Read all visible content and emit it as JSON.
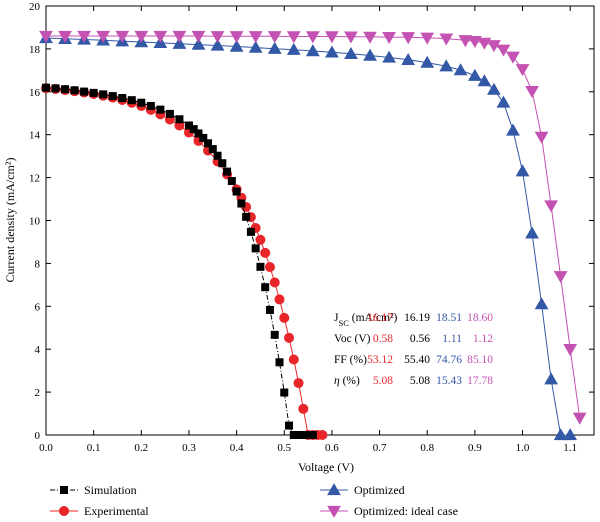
{
  "chart_data": {
    "type": "scatter",
    "xlabel": "Voltage (V)",
    "ylabel": "Current density (mA/cm²)",
    "xlim": [
      0.0,
      1.15
    ],
    "ylim": [
      0,
      20
    ],
    "xticks": [
      "0.0",
      "0.1",
      "0.2",
      "0.3",
      "0.4",
      "0.5",
      "0.6",
      "0.7",
      "0.8",
      "0.9",
      "1.0",
      "1.1"
    ],
    "yticks": [
      "0",
      "2",
      "4",
      "6",
      "8",
      "10",
      "12",
      "14",
      "16",
      "18",
      "20"
    ],
    "grid": false,
    "legend_position": "bottom",
    "series": [
      {
        "name": "Simulation",
        "color": "#000000",
        "marker": "square",
        "line": "dash-dot",
        "Jsc": 16.19,
        "Voc": 0.56,
        "x": [
          0.0,
          0.02,
          0.04,
          0.06,
          0.08,
          0.1,
          0.12,
          0.14,
          0.16,
          0.18,
          0.2,
          0.22,
          0.24,
          0.26,
          0.28,
          0.3,
          0.31,
          0.32,
          0.33,
          0.34,
          0.35,
          0.36,
          0.37,
          0.38,
          0.39,
          0.4,
          0.41,
          0.42,
          0.43,
          0.44,
          0.45,
          0.46,
          0.47,
          0.48,
          0.49,
          0.5,
          0.51,
          0.52,
          0.53,
          0.54,
          0.55,
          0.56
        ],
        "y": [
          16.19,
          16.16,
          16.12,
          16.07,
          16.01,
          15.95,
          15.88,
          15.8,
          15.71,
          15.61,
          15.49,
          15.34,
          15.17,
          14.97,
          14.72,
          14.43,
          14.26,
          14.06,
          13.85,
          13.6,
          13.33,
          13.02,
          12.67,
          12.28,
          11.84,
          11.35,
          10.79,
          10.17,
          9.47,
          8.7,
          7.84,
          6.89,
          5.83,
          4.67,
          3.39,
          1.98,
          0.44,
          0.0,
          0.0,
          0.0,
          0.0,
          0.0
        ]
      },
      {
        "name": "Experimental",
        "color": "#e8262a",
        "marker": "circle",
        "line": "solid",
        "Jsc": 16.17,
        "Voc": 0.58,
        "x": [
          0.0,
          0.02,
          0.04,
          0.06,
          0.08,
          0.1,
          0.12,
          0.14,
          0.16,
          0.18,
          0.2,
          0.22,
          0.24,
          0.26,
          0.28,
          0.3,
          0.32,
          0.34,
          0.36,
          0.38,
          0.4,
          0.41,
          0.42,
          0.43,
          0.44,
          0.45,
          0.46,
          0.47,
          0.48,
          0.49,
          0.5,
          0.51,
          0.52,
          0.53,
          0.54,
          0.55,
          0.56,
          0.57,
          0.58
        ],
        "y": [
          16.17,
          16.13,
          16.08,
          16.03,
          15.97,
          15.9,
          15.82,
          15.73,
          15.62,
          15.49,
          15.34,
          15.16,
          14.95,
          14.71,
          14.43,
          14.1,
          13.71,
          13.26,
          12.75,
          12.15,
          11.45,
          11.06,
          10.63,
          10.16,
          9.65,
          9.1,
          8.49,
          7.83,
          7.11,
          6.32,
          5.46,
          4.53,
          3.52,
          2.42,
          1.22,
          0.0,
          0.0,
          0.0,
          0.0
        ]
      },
      {
        "name": "Optimized",
        "color": "#3358a6",
        "marker": "triangle-up",
        "line": "solid",
        "Jsc": 18.51,
        "Voc": 1.11,
        "x": [
          0.0,
          0.04,
          0.08,
          0.12,
          0.16,
          0.2,
          0.24,
          0.28,
          0.32,
          0.36,
          0.4,
          0.44,
          0.48,
          0.52,
          0.56,
          0.6,
          0.64,
          0.68,
          0.72,
          0.76,
          0.8,
          0.84,
          0.87,
          0.9,
          0.92,
          0.94,
          0.96,
          0.98,
          1.0,
          1.02,
          1.04,
          1.06,
          1.08,
          1.1
        ],
        "y": [
          18.51,
          18.47,
          18.44,
          18.4,
          18.36,
          18.32,
          18.28,
          18.24,
          18.2,
          18.16,
          18.11,
          18.06,
          18.01,
          17.96,
          17.9,
          17.84,
          17.77,
          17.69,
          17.6,
          17.49,
          17.36,
          17.19,
          17.01,
          16.75,
          16.5,
          16.1,
          15.5,
          14.2,
          12.3,
          9.4,
          6.1,
          2.6,
          0.0,
          0.0
        ]
      },
      {
        "name": "Optimized: ideal case",
        "color": "#c452b3",
        "marker": "triangle-down",
        "line": "solid",
        "Jsc": 18.6,
        "Voc": 1.12,
        "x": [
          0.0,
          0.04,
          0.08,
          0.12,
          0.16,
          0.2,
          0.24,
          0.28,
          0.32,
          0.36,
          0.4,
          0.44,
          0.48,
          0.52,
          0.56,
          0.6,
          0.64,
          0.68,
          0.72,
          0.76,
          0.8,
          0.84,
          0.88,
          0.9,
          0.92,
          0.94,
          0.96,
          0.98,
          1.0,
          1.02,
          1.04,
          1.06,
          1.08,
          1.1,
          1.12
        ],
        "y": [
          18.6,
          18.6,
          18.6,
          18.6,
          18.6,
          18.6,
          18.6,
          18.6,
          18.6,
          18.59,
          18.59,
          18.59,
          18.59,
          18.58,
          18.58,
          18.58,
          18.57,
          18.56,
          18.55,
          18.54,
          18.52,
          18.48,
          18.4,
          18.36,
          18.28,
          18.17,
          17.96,
          17.63,
          17.05,
          16.03,
          13.9,
          10.7,
          7.4,
          4.0,
          0.8
        ]
      }
    ],
    "table": {
      "rows": [
        {
          "label_main": "J",
          "label_sub": "SC",
          "label_rest": " (mA/cm²)",
          "values": [
            "16.17",
            "16.19",
            "18.51",
            "18.60"
          ]
        },
        {
          "label_main": "Voc (V)",
          "label_sub": "",
          "label_rest": "",
          "values": [
            "0.58",
            "0.56",
            "1.11",
            "1.12"
          ]
        },
        {
          "label_main": "FF (%)",
          "label_sub": "",
          "label_rest": "",
          "values": [
            "53.12",
            "55.40",
            "74.76",
            "85.10"
          ]
        },
        {
          "label_main": "η (%)",
          "label_sub": "",
          "label_rest": "",
          "values": [
            "5.08",
            "5.08",
            "15.43",
            "17.78"
          ]
        }
      ],
      "column_colors": [
        "#e8262a",
        "#000000",
        "#3358a6",
        "#c452b3"
      ]
    }
  }
}
